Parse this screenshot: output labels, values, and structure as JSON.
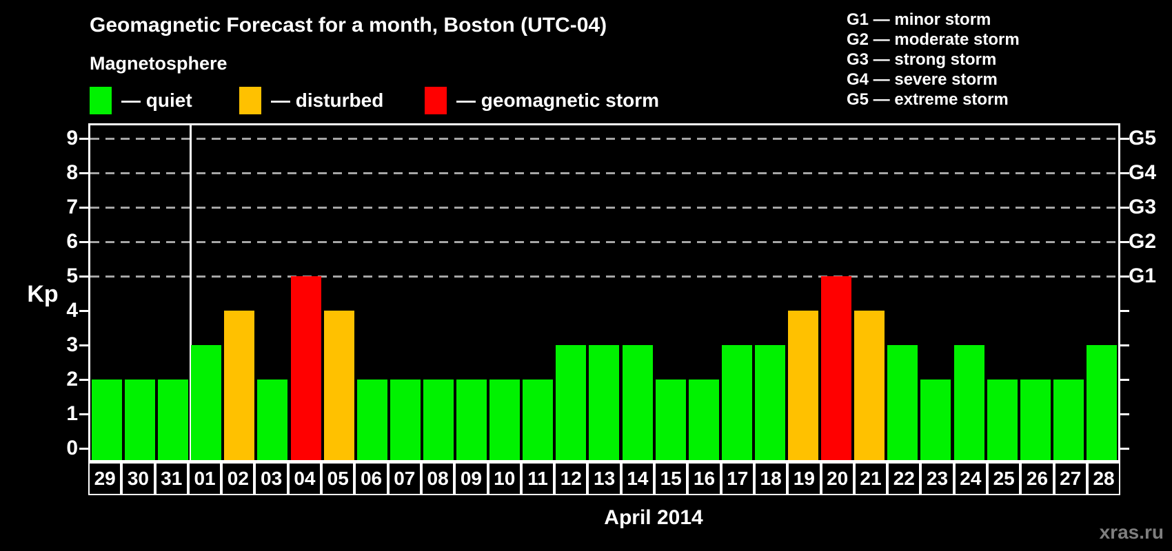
{
  "title": "Geomagnetic Forecast for a month, Boston (UTC-04)",
  "subtitle": "Magnetosphere",
  "legend": {
    "items": [
      {
        "state": "quiet",
        "label": "— quiet",
        "color": "#00f200",
        "x": 130
      },
      {
        "state": "disturbed",
        "label": "— disturbed",
        "color": "#ffc100",
        "x": 347
      },
      {
        "state": "storm",
        "label": "— geomagnetic storm",
        "color": "#ff0000",
        "x": 616
      }
    ]
  },
  "g_legend": [
    "G1 — minor storm",
    "G2 — moderate storm",
    "G3 — strong storm",
    "G4 — severe storm",
    "G5 — extreme storm"
  ],
  "axis": {
    "y_label": "Kp",
    "y_ticks": [
      0,
      1,
      2,
      3,
      4,
      5,
      6,
      7,
      8,
      9
    ],
    "grid_kp": [
      5,
      6,
      7,
      8,
      9
    ],
    "right_labels": [
      {
        "text": "G1",
        "kp": 5
      },
      {
        "text": "G2",
        "kp": 6
      },
      {
        "text": "G3",
        "kp": 7
      },
      {
        "text": "G4",
        "kp": 8
      },
      {
        "text": "G5",
        "kp": 9
      }
    ]
  },
  "x_label": "April 2014",
  "watermark": "xras.ru",
  "chart_data": {
    "type": "bar",
    "title": "Geomagnetic Forecast for a month, Boston (UTC-04)",
    "xlabel": "April 2014",
    "ylabel": "Kp",
    "ylim": [
      0,
      9
    ],
    "grid": "dashed horizontal at Kp 5-9 (G1-G5)",
    "legend_position": "top-left",
    "month_separator_after_index": 2,
    "categories": [
      "29",
      "30",
      "31",
      "01",
      "02",
      "03",
      "04",
      "05",
      "06",
      "07",
      "08",
      "09",
      "10",
      "11",
      "12",
      "13",
      "14",
      "15",
      "16",
      "17",
      "18",
      "19",
      "20",
      "21",
      "22",
      "23",
      "24",
      "25",
      "26",
      "27",
      "28"
    ],
    "values": [
      2,
      2,
      2,
      3,
      4,
      2,
      5,
      4,
      2,
      2,
      2,
      2,
      2,
      2,
      3,
      3,
      3,
      2,
      2,
      3,
      3,
      4,
      5,
      4,
      3,
      2,
      3,
      2,
      2,
      2,
      3
    ],
    "states": [
      "quiet",
      "quiet",
      "quiet",
      "quiet",
      "disturbed",
      "quiet",
      "storm",
      "disturbed",
      "quiet",
      "quiet",
      "quiet",
      "quiet",
      "quiet",
      "quiet",
      "quiet",
      "quiet",
      "quiet",
      "quiet",
      "quiet",
      "quiet",
      "quiet",
      "disturbed",
      "storm",
      "disturbed",
      "quiet",
      "quiet",
      "quiet",
      "quiet",
      "quiet",
      "quiet",
      "quiet"
    ],
    "colors": {
      "quiet": "#00f200",
      "disturbed": "#ffc100",
      "storm": "#ff0000"
    }
  }
}
